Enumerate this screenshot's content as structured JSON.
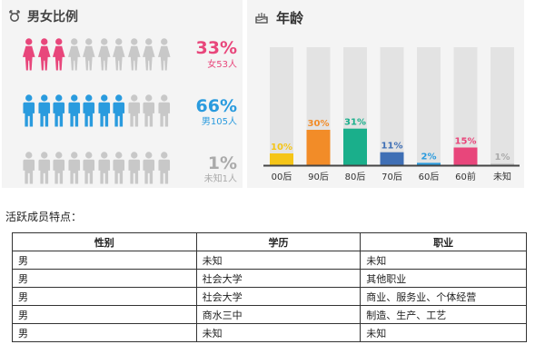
{
  "colors": {
    "female": "#e8467b",
    "male": "#2a9bde",
    "unknown": "#c8c8c8",
    "panel_bg": "#f4f4f4"
  },
  "gender": {
    "title": "男女比例",
    "icon": "gender-symbol-icon",
    "rows": [
      {
        "key": "female",
        "percent": "33%",
        "detail": "女53人",
        "filled": 3,
        "total": 10
      },
      {
        "key": "male",
        "percent": "66%",
        "detail": "男105人",
        "filled": 7,
        "total": 10
      },
      {
        "key": "unknown",
        "percent": "1%",
        "detail": "未知1人",
        "filled": 0,
        "total": 10
      }
    ]
  },
  "age": {
    "title": "年龄",
    "icon": "birthday-cake-icon"
  },
  "chart_data": {
    "type": "bar",
    "title": "年龄",
    "categories": [
      "00后",
      "90后",
      "80后",
      "70后",
      "60后",
      "60前",
      "未知"
    ],
    "values": [
      10,
      30,
      31,
      11,
      2,
      15,
      1
    ],
    "value_labels": [
      "10%",
      "30%",
      "31%",
      "11%",
      "2%",
      "15%",
      "1%"
    ],
    "colors": [
      "#f5c518",
      "#f28c28",
      "#1aaf8b",
      "#3f6fb5",
      "#2a9bde",
      "#e8467b",
      "#cccccc"
    ],
    "ylim": [
      0,
      100
    ],
    "grid": false,
    "legend": "none"
  },
  "members": {
    "title": "活跃成员特点：",
    "headers": [
      "性别",
      "学历",
      "职业"
    ],
    "rows": [
      [
        "男",
        "未知",
        "未知"
      ],
      [
        "男",
        "社会大学",
        "其他职业"
      ],
      [
        "男",
        "社会大学",
        "商业、服务业、个体经营"
      ],
      [
        "男",
        "商水三中",
        "制造、生产、工艺"
      ],
      [
        "男",
        "未知",
        "未知"
      ]
    ]
  }
}
